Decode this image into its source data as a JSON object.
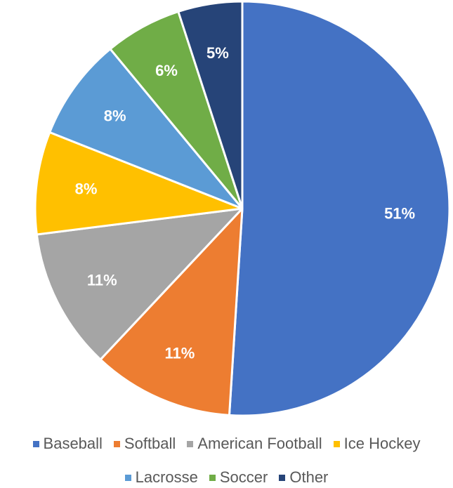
{
  "chart_data": {
    "type": "pie",
    "title": "",
    "slices": [
      {
        "name": "Baseball",
        "value": 51,
        "label": "51%",
        "color": "#4472C4"
      },
      {
        "name": "Softball",
        "value": 11,
        "label": "11%",
        "color": "#ED7D31"
      },
      {
        "name": "American Football",
        "value": 11,
        "label": "11%",
        "color": "#A5A5A5"
      },
      {
        "name": "Ice Hockey",
        "value": 8,
        "label": "8%",
        "color": "#FFC000"
      },
      {
        "name": "Lacrosse",
        "value": 8,
        "label": "8%",
        "color": "#5B9BD5"
      },
      {
        "name": "Soccer",
        "value": 6,
        "label": "6%",
        "color": "#70AD47"
      },
      {
        "name": "Other",
        "value": 5,
        "label": "5%",
        "color": "#264478"
      }
    ],
    "legend_position": "bottom",
    "start_angle": "top",
    "direction": "clockwise"
  }
}
